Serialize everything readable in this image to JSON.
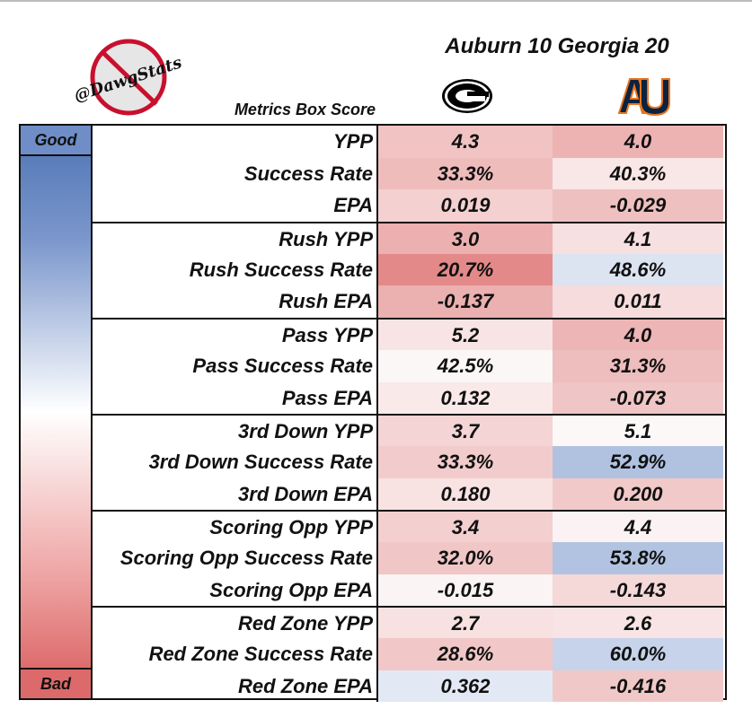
{
  "header": {
    "title": "Auburn 10 Georgia 20",
    "subtitle": "Metrics Box Score",
    "logo_text": "@DawgStats"
  },
  "scale": {
    "good_label": "Good",
    "bad_label": "Bad",
    "good_color": "#4d73b3",
    "bad_color": "#d85a5a"
  },
  "chart_data": {
    "type": "table",
    "columns": [
      "Georgia",
      "Auburn"
    ],
    "rows": [
      {
        "metric": "YPP",
        "uga": "4.3",
        "au": "4.0",
        "uga_c": "#f1c3c3",
        "au_c": "#edb3b3"
      },
      {
        "metric": "Success Rate",
        "uga": "33.3%",
        "au": "40.3%",
        "uga_c": "#efbcbc",
        "au_c": "#f9e6e6"
      },
      {
        "metric": "EPA",
        "uga": "0.019",
        "au": "-0.029",
        "uga_c": "#f4d0d0",
        "au_c": "#efc0c0"
      },
      {
        "metric": "Rush YPP",
        "uga": "3.0",
        "au": "4.1",
        "uga_c": "#ecb0b0",
        "au_c": "#f7e0e0"
      },
      {
        "metric": "Rush Success Rate",
        "uga": "20.7%",
        "au": "48.6%",
        "uga_c": "#e48989",
        "au_c": "#dce3f1"
      },
      {
        "metric": "Rush EPA",
        "uga": "-0.137",
        "au": "0.011",
        "uga_c": "#ebb0b0",
        "au_c": "#f6dcdc"
      },
      {
        "metric": "Pass YPP",
        "uga": "5.2",
        "au": "4.0",
        "uga_c": "#f8e4e4",
        "au_c": "#edb5b5"
      },
      {
        "metric": "Pass Success Rate",
        "uga": "42.5%",
        "au": "31.3%",
        "uga_c": "#fbf7f7",
        "au_c": "#eebdbd"
      },
      {
        "metric": "Pass EPA",
        "uga": "0.132",
        "au": "-0.073",
        "uga_c": "#fae9e9",
        "au_c": "#f0c5c5"
      },
      {
        "metric": "3rd Down YPP",
        "uga": "3.7",
        "au": "5.1",
        "uga_c": "#f4d4d4",
        "au_c": "#fcf8f8"
      },
      {
        "metric": "3rd Down Success Rate",
        "uga": "33.3%",
        "au": "52.9%",
        "uga_c": "#f2cccc",
        "au_c": "#b1c2e1"
      },
      {
        "metric": "3rd Down EPA",
        "uga": "0.180",
        "au": "0.200",
        "uga_c": "#f8e2e2",
        "au_c": "#f2c9c9"
      },
      {
        "metric": "Scoring Opp YPP",
        "uga": "3.4",
        "au": "4.4",
        "uga_c": "#f3cfcf",
        "au_c": "#fbf3f3"
      },
      {
        "metric": "Scoring Opp Success Rate",
        "uga": "32.0%",
        "au": "53.8%",
        "uga_c": "#f1c6c6",
        "au_c": "#b2c3e1"
      },
      {
        "metric": "Scoring Opp EPA",
        "uga": "-0.015",
        "au": "-0.143",
        "uga_c": "#fbf4f4",
        "au_c": "#f5d8d8"
      },
      {
        "metric": "Red Zone YPP",
        "uga": "2.7",
        "au": "2.6",
        "uga_c": "#f7e1e1",
        "au_c": "#f8e4e4"
      },
      {
        "metric": "Red Zone Success Rate",
        "uga": "28.6%",
        "au": "60.0%",
        "uga_c": "#f1c7c7",
        "au_c": "#c6d3ea"
      },
      {
        "metric": "Red Zone EPA",
        "uga": "0.362",
        "au": "-0.416",
        "uga_c": "#e3e9f4",
        "au_c": "#f1c8c8"
      }
    ]
  }
}
